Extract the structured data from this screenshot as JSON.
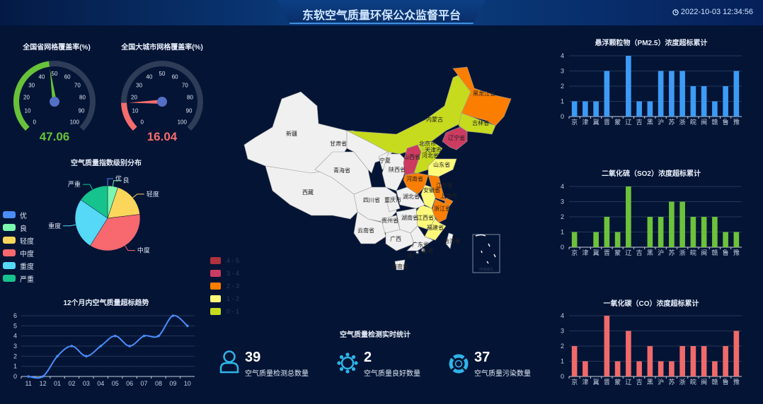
{
  "header": {
    "title": "东软空气质量环保公众监督平台",
    "datetime": "2022-10-03 12:34:56",
    "clock_icon": "clock-icon"
  },
  "gauges": [
    {
      "title": "全国省网格覆盖率(%)",
      "value": 47.06,
      "value_label": "47.06",
      "min": 0,
      "max": 100,
      "ticks": [
        "0",
        "10",
        "20",
        "30",
        "40",
        "50",
        "60",
        "70",
        "80",
        "90",
        "100"
      ],
      "color": "#67c23a"
    },
    {
      "title": "全国大城市网格覆盖率(%)",
      "value": 16.04,
      "value_label": "16.04",
      "min": 0,
      "max": 100,
      "ticks": [
        "0",
        "10",
        "20",
        "30",
        "40",
        "50",
        "60",
        "70",
        "80",
        "90",
        "100"
      ],
      "color": "#f56c6c"
    }
  ],
  "chart_data": [
    {
      "type": "pie",
      "title": "空气质量指数级别分布",
      "legend_placement": "left",
      "categories": [
        "优",
        "良",
        "轻度",
        "中度",
        "重度",
        "严重"
      ],
      "values": [
        0,
        2,
        7,
        14,
        10,
        6
      ],
      "colors": [
        "#4a8df8",
        "#7cf7b0",
        "#fcd65a",
        "#f7686f",
        "#56d8f7",
        "#16c38c"
      ]
    },
    {
      "type": "line",
      "title": "12个月内空气质量超标趋势",
      "categories": [
        "11",
        "12",
        "01",
        "02",
        "03",
        "04",
        "05",
        "06",
        "07",
        "08",
        "09",
        "10"
      ],
      "values": [
        0,
        0,
        2,
        3,
        2,
        3,
        4,
        3,
        4,
        4,
        6,
        5
      ],
      "ylim": [
        0,
        6
      ],
      "yticks": [
        "0",
        "1",
        "2",
        "3",
        "4",
        "5",
        "6"
      ],
      "grid": true,
      "color": "#4a8df8"
    },
    {
      "type": "bar",
      "title": "悬浮颗粒物（PM2.5）浓度超标累计",
      "categories": [
        "京",
        "津",
        "冀",
        "晋",
        "蒙",
        "辽",
        "吉",
        "黑",
        "沪",
        "苏",
        "浙",
        "皖",
        "闽",
        "赣",
        "鲁",
        "豫"
      ],
      "values": [
        1,
        1,
        1,
        3,
        0,
        4,
        1,
        1,
        3,
        3,
        3,
        2,
        2,
        1,
        2,
        3
      ],
      "ylim": [
        0,
        4
      ],
      "yticks": [
        "0",
        "1",
        "2",
        "3",
        "4"
      ],
      "grid": true,
      "color": "#3d9bf5"
    },
    {
      "type": "bar",
      "title": "二氧化硫（SO2）浓度超标累计",
      "categories": [
        "京",
        "津",
        "冀",
        "晋",
        "蒙",
        "辽",
        "吉",
        "黑",
        "沪",
        "苏",
        "浙",
        "皖",
        "闽",
        "赣",
        "鲁",
        "豫"
      ],
      "values": [
        1,
        0,
        1,
        2,
        1,
        4,
        0,
        2,
        2,
        3,
        3,
        2,
        2,
        2,
        1,
        1
      ],
      "ylim": [
        0,
        4
      ],
      "yticks": [
        "0",
        "1",
        "2",
        "3",
        "4"
      ],
      "grid": true,
      "color": "#6cc23a"
    },
    {
      "type": "bar",
      "title": "一氧化碳（CO）浓度超标累计",
      "categories": [
        "京",
        "津",
        "冀",
        "晋",
        "蒙",
        "辽",
        "吉",
        "黑",
        "沪",
        "苏",
        "浙",
        "皖",
        "闽",
        "赣",
        "鲁",
        "豫"
      ],
      "values": [
        2,
        1,
        0,
        4,
        1,
        3,
        1,
        2,
        1,
        1,
        2,
        2,
        2,
        1,
        2,
        3
      ],
      "ylim": [
        0,
        4
      ],
      "yticks": [
        "0",
        "1",
        "2",
        "3",
        "4"
      ],
      "grid": true,
      "color": "#f06a6a"
    }
  ],
  "map": {
    "legend": [
      {
        "label": "4 - 5",
        "color": "#b0313f"
      },
      {
        "label": "3 - 4",
        "color": "#cc3b61"
      },
      {
        "label": "2 - 3",
        "color": "#fb7e00"
      },
      {
        "label": "1 - 2",
        "color": "#fdfa7a"
      },
      {
        "label": "0 - 1",
        "color": "#c6db1e"
      }
    ],
    "default_color": "#f0f0f0",
    "provinces": [
      {
        "name": "新疆",
        "level": null
      },
      {
        "name": "西藏",
        "level": null
      },
      {
        "name": "青海省",
        "level": null
      },
      {
        "name": "甘肃省",
        "level": null
      },
      {
        "name": "内蒙古",
        "level": "0 - 1"
      },
      {
        "name": "黑龙江省",
        "level": "2 - 3"
      },
      {
        "name": "吉林省",
        "level": "0 - 1"
      },
      {
        "name": "辽宁省",
        "level": "3 - 4"
      },
      {
        "name": "宁夏",
        "level": null
      },
      {
        "name": "陕西省",
        "level": null
      },
      {
        "name": "山西省",
        "level": "3 - 4"
      },
      {
        "name": "河北省",
        "level": "0 - 1"
      },
      {
        "name": "北京市",
        "level": "0 - 1"
      },
      {
        "name": "天津市",
        "level": "0 - 1"
      },
      {
        "name": "山东省",
        "level": "1 - 2"
      },
      {
        "name": "河南省",
        "level": "2 - 3"
      },
      {
        "name": "江苏省",
        "level": "2 - 3"
      },
      {
        "name": "上海市",
        "level": "2 - 3"
      },
      {
        "name": "安徽省",
        "level": "1 - 2"
      },
      {
        "name": "浙江省",
        "level": "2 - 3"
      },
      {
        "name": "江西省",
        "level": "1 - 2"
      },
      {
        "name": "福建省",
        "level": "1 - 2"
      },
      {
        "name": "湖北省",
        "level": null
      },
      {
        "name": "四川省",
        "level": null
      },
      {
        "name": "重庆市",
        "level": null
      },
      {
        "name": "湖南省",
        "level": null
      },
      {
        "name": "贵州省",
        "level": null
      },
      {
        "name": "云南省",
        "level": null
      },
      {
        "name": "广西",
        "level": null
      },
      {
        "name": "广东省",
        "level": null
      },
      {
        "name": "海南省",
        "level": null
      },
      {
        "name": "台湾省",
        "level": null
      },
      {
        "name": "香港",
        "level": null
      },
      {
        "name": "澳门",
        "level": null
      }
    ],
    "inset_label": "南海诸岛"
  },
  "stats": {
    "title": "空气质量检测实时统计",
    "items": [
      {
        "value": "39",
        "label": "空气质量检测总数量",
        "icon": "user-icon"
      },
      {
        "value": "2",
        "label": "空气质量良好数量",
        "icon": "sun-icon"
      },
      {
        "value": "37",
        "label": "空气质量污染数量",
        "icon": "lifebuoy-icon"
      }
    ],
    "color": "#2fb4e8"
  }
}
